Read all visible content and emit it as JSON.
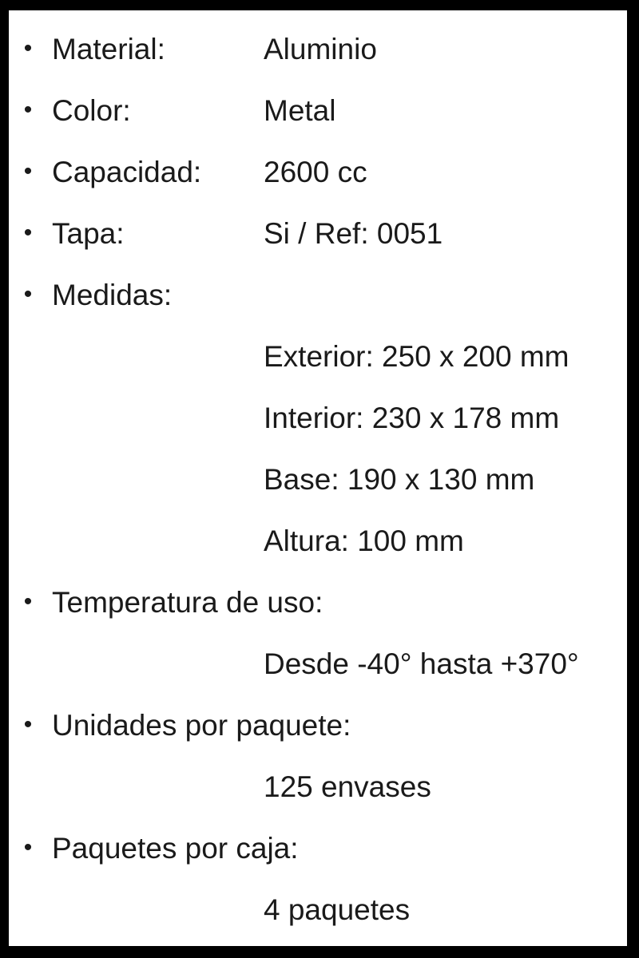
{
  "page": {
    "background_color": "#ffffff",
    "border_color": "#000000",
    "text_color": "#1a1a1a",
    "bullet": "•"
  },
  "rows": [
    {
      "type": "item",
      "label": "Material:",
      "value": "Aluminio"
    },
    {
      "type": "item",
      "label": "Color:",
      "value": "Metal"
    },
    {
      "type": "item",
      "label": "Capacidad:",
      "value": "2600 cc"
    },
    {
      "type": "item",
      "label": "Tapa:",
      "value": "Si / Ref: 0051"
    },
    {
      "type": "item",
      "label": "Medidas:"
    },
    {
      "type": "sub",
      "text": "Exterior: 250 x 200 mm"
    },
    {
      "type": "sub",
      "text": "Interior: 230 x 178 mm"
    },
    {
      "type": "sub",
      "text": "Base: 190 x 130 mm"
    },
    {
      "type": "sub",
      "text": "Altura: 100 mm"
    },
    {
      "type": "item",
      "label": "Temperatura de uso:"
    },
    {
      "type": "sub",
      "text": "Desde -40° hasta +370°"
    },
    {
      "type": "item",
      "label": "Unidades por paquete:"
    },
    {
      "type": "sub",
      "text": "125 envases"
    },
    {
      "type": "item",
      "label": "Paquetes por caja:"
    },
    {
      "type": "sub",
      "text": "4 paquetes"
    }
  ]
}
